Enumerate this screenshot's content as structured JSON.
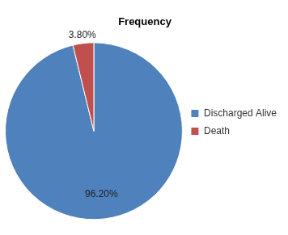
{
  "chart_data": {
    "type": "pie",
    "title": "Frequency",
    "categories": [
      "Discharged Alive",
      "Death"
    ],
    "values": [
      96.2,
      3.8
    ],
    "value_labels": [
      "96.20%",
      "3.80%"
    ],
    "colors": [
      "#4f81bd",
      "#c0504d"
    ],
    "legend": "right",
    "data_labels": true
  }
}
